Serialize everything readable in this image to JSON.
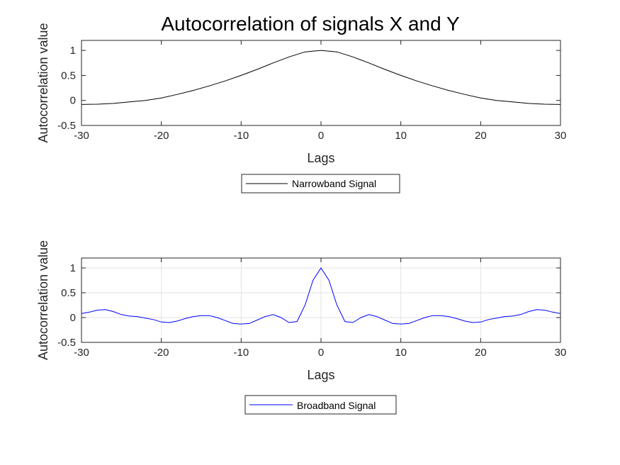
{
  "figure_title": "Autocorrelation of signals X and Y",
  "chart_data": [
    {
      "type": "line",
      "title": "Autocorrelation of signals X and Y",
      "xlabel": "Lags",
      "ylabel": "Autocorrelation value",
      "xlim": [
        -30,
        30
      ],
      "ylim": [
        -0.5,
        1.2
      ],
      "xticks": [
        -30,
        -20,
        -10,
        0,
        10,
        20,
        30
      ],
      "xtick_labels": [
        "-30",
        "-20",
        "-10",
        "0",
        "10",
        "20",
        "30"
      ],
      "yticks": [
        -0.5,
        0,
        0.5,
        1
      ],
      "ytick_labels": [
        "-0.5",
        "0",
        "0.5",
        "1"
      ],
      "grid": false,
      "legend_position": "below",
      "series": [
        {
          "name": "Narrowband Signal",
          "color": "#000000",
          "x": [
            -30,
            -28,
            -26,
            -24,
            -22,
            -20,
            -18,
            -16,
            -14,
            -12,
            -10,
            -8,
            -6,
            -4,
            -2,
            0,
            2,
            4,
            6,
            8,
            10,
            12,
            14,
            16,
            18,
            20,
            22,
            24,
            26,
            28,
            30
          ],
          "y": [
            -0.08,
            -0.075,
            -0.06,
            -0.03,
            0.0,
            0.05,
            0.12,
            0.2,
            0.29,
            0.39,
            0.5,
            0.62,
            0.75,
            0.87,
            0.97,
            1.0,
            0.97,
            0.87,
            0.75,
            0.62,
            0.5,
            0.39,
            0.29,
            0.2,
            0.12,
            0.05,
            0.0,
            -0.03,
            -0.06,
            -0.075,
            -0.08
          ]
        }
      ]
    },
    {
      "type": "line",
      "xlabel": "Lags",
      "ylabel": "Autocorrelation value",
      "xlim": [
        -30,
        30
      ],
      "ylim": [
        -0.5,
        1.2
      ],
      "xticks": [
        -30,
        -20,
        -10,
        0,
        10,
        20,
        30
      ],
      "xtick_labels": [
        "-30",
        "-20",
        "-10",
        "0",
        "10",
        "20",
        "30"
      ],
      "yticks": [
        -0.5,
        0,
        0.5,
        1
      ],
      "ytick_labels": [
        "-0.5",
        "0",
        "0.5",
        "1"
      ],
      "grid": true,
      "legend_position": "below",
      "series": [
        {
          "name": "Broadband Signal",
          "color": "#0000ff",
          "x": [
            -30,
            -29,
            -28,
            -27,
            -26,
            -25,
            -24,
            -23,
            -22,
            -21,
            -20,
            -19,
            -18,
            -17,
            -16,
            -15,
            -14,
            -13,
            -12,
            -11,
            -10,
            -9,
            -8,
            -7,
            -6,
            -5,
            -4,
            -3,
            -2,
            -1,
            0,
            1,
            2,
            3,
            4,
            5,
            6,
            7,
            8,
            9,
            10,
            11,
            12,
            13,
            14,
            15,
            16,
            17,
            18,
            19,
            20,
            21,
            22,
            23,
            24,
            25,
            26,
            27,
            28,
            29,
            30
          ],
          "y": [
            0.08,
            0.11,
            0.15,
            0.16,
            0.12,
            0.06,
            0.03,
            0.02,
            -0.01,
            -0.04,
            -0.09,
            -0.1,
            -0.07,
            -0.02,
            0.02,
            0.04,
            0.04,
            0.0,
            -0.06,
            -0.12,
            -0.13,
            -0.12,
            -0.05,
            0.02,
            0.06,
            0.0,
            -0.1,
            -0.08,
            0.25,
            0.75,
            1.0,
            0.75,
            0.25,
            -0.08,
            -0.1,
            0.0,
            0.06,
            0.02,
            -0.05,
            -0.12,
            -0.13,
            -0.12,
            -0.06,
            0.0,
            0.04,
            0.04,
            0.02,
            -0.02,
            -0.07,
            -0.1,
            -0.09,
            -0.04,
            -0.01,
            0.02,
            0.03,
            0.06,
            0.12,
            0.16,
            0.15,
            0.11,
            0.08
          ]
        }
      ]
    }
  ]
}
